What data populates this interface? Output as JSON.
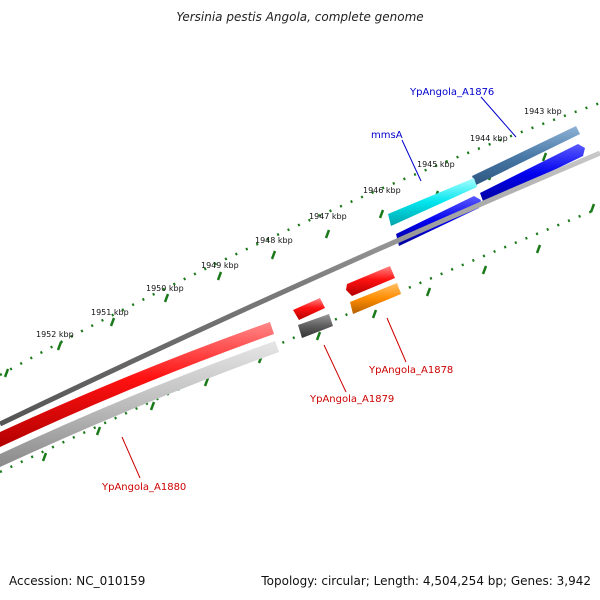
{
  "title": "Yersinia pestis Angola, complete genome",
  "accession": "Accession: NC_010159",
  "summary": "Topology: circular; Length: 4,504,254 bp; Genes: 3,942",
  "ruler": [
    "1943 kbp",
    "1944 kbp",
    "1945 kbp",
    "1946 kbp",
    "1947 kbp",
    "1948 kbp",
    "1949 kbp",
    "1950 kbp",
    "1951 kbp",
    "1952 kbp"
  ],
  "genes": {
    "a1876": "YpAngola_A1876",
    "mmsA": "mmsA",
    "a1878": "YpAngola_A1878",
    "a1879": "YpAngola_A1879",
    "a1880": "YpAngola_A1880"
  },
  "colors": {
    "forward_label": "#0000cc",
    "reverse_label": "#cc0000",
    "tick": "#1a7a1a",
    "backbone": "#777777"
  }
}
